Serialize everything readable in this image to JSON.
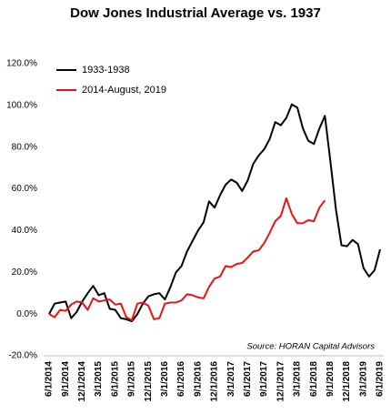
{
  "chart_data": {
    "type": "line",
    "title": "Dow Jones Industrial Average vs. 1937",
    "annotation": "Source: HORAN Capital Advisors",
    "categories": [
      "6/1/2014",
      null,
      null,
      "9/1/2014",
      null,
      null,
      "12/1/2014",
      null,
      null,
      "3/1/2015",
      null,
      null,
      "6/1/2015",
      null,
      null,
      "9/1/2015",
      null,
      null,
      "12/1/2015",
      null,
      null,
      "3/1/2016",
      null,
      null,
      "6/1/2016",
      null,
      null,
      "9/1/2016",
      null,
      null,
      "12/1/2016",
      null,
      null,
      "3/1/2017",
      null,
      null,
      "6/1/2017",
      null,
      null,
      "9/1/2017",
      null,
      null,
      "12/1/2017",
      null,
      null,
      "3/1/2018",
      null,
      null,
      "6/1/2018",
      null,
      null,
      "9/1/2018",
      null,
      null,
      "12/1/2018",
      null,
      null,
      "3/1/2019",
      null,
      null,
      "6/1/2019"
    ],
    "series": [
      {
        "name": "1933-1938",
        "color": "#000000",
        "values": [
          0,
          5,
          5.5,
          6,
          -2,
          1,
          6,
          10,
          13.5,
          9,
          10,
          2.5,
          2,
          -2,
          -2.5,
          -3.5,
          0,
          5,
          8.5,
          9.5,
          10,
          7,
          13,
          20,
          23,
          30,
          35,
          40,
          44,
          54,
          51,
          57,
          62,
          64.5,
          63,
          59,
          64,
          72,
          76,
          79,
          84,
          92,
          90.5,
          94,
          100.5,
          99,
          89,
          83,
          81.5,
          89,
          95,
          73,
          50,
          33,
          32.5,
          35.5,
          33.5,
          22,
          18,
          21,
          31
        ]
      },
      {
        "name": "2014-August, 2019",
        "color": "#ee1111",
        "values": [
          0,
          -1.5,
          2,
          1.5,
          4.5,
          6,
          5.5,
          2,
          7.5,
          6,
          6.5,
          7,
          4.5,
          5,
          -1.5,
          -3,
          5,
          5.5,
          4,
          -2.5,
          -2,
          5,
          5.5,
          5.5,
          6.5,
          9.5,
          9,
          8,
          7.5,
          13,
          17,
          18,
          23,
          22.5,
          24,
          24.5,
          27,
          30,
          30.5,
          34,
          39,
          44.5,
          47,
          55.5,
          48,
          43.5,
          43.5,
          45,
          44.5,
          51,
          54.5,
          null,
          null,
          null,
          null,
          null,
          null,
          null,
          null,
          null,
          null
        ]
      }
    ],
    "ylim": [
      -20,
      120
    ],
    "yticks": [
      {
        "value": -20,
        "label": "-20.0%"
      },
      {
        "value": 0,
        "label": "0.0%"
      },
      {
        "value": 20,
        "label": "20.0%"
      },
      {
        "value": 40,
        "label": "40.0%"
      },
      {
        "value": 60,
        "label": "60.0%"
      },
      {
        "value": 80,
        "label": "80.0%"
      },
      {
        "value": 100,
        "label": "100.0%"
      },
      {
        "value": 120,
        "label": "120.0%"
      }
    ],
    "grid": false,
    "legend": "upper left"
  }
}
